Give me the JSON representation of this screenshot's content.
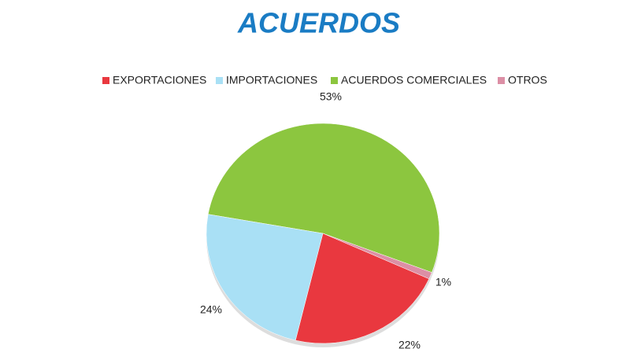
{
  "chart_data": {
    "type": "pie",
    "title": "ACUERDOS",
    "categories": [
      "EXPORTACIONES",
      "IMPORTACIONES",
      "ACUERDOS COMERCIALES",
      "OTROS"
    ],
    "values": [
      22,
      24,
      53,
      1
    ],
    "value_labels": [
      "22%",
      "24%",
      "53%",
      "1%"
    ],
    "colors": [
      "#e9383f",
      "#a9e0f5",
      "#8cc63f",
      "#dc8fa5"
    ],
    "legend": "top"
  }
}
